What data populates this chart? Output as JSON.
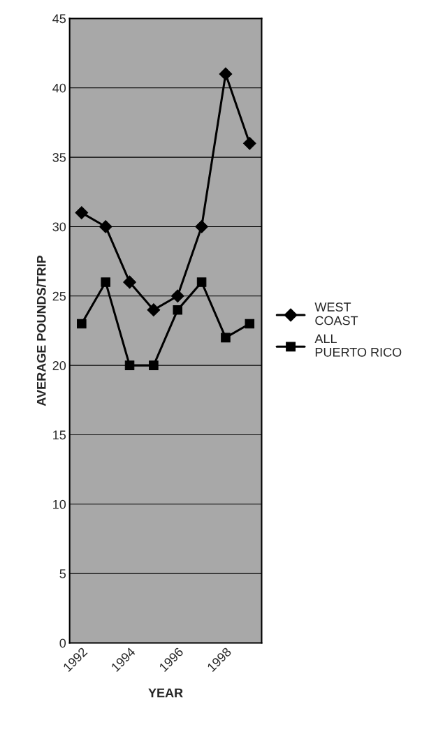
{
  "chart_data": {
    "type": "line",
    "xlabel": "YEAR",
    "ylabel": "AVERAGE POUNDS/TRIP",
    "categories": [
      "1992",
      null,
      "1994",
      null,
      "1996",
      null,
      "1998",
      null
    ],
    "series": [
      {
        "name": "WEST COAST",
        "color": "#000000",
        "marker": "diamond",
        "values": [
          31,
          30,
          26,
          24,
          25,
          30,
          41,
          36
        ]
      },
      {
        "name": "ALL PUERTO RICO",
        "color": "#000000",
        "marker": "square",
        "values": [
          23,
          26,
          20,
          20,
          24,
          26,
          22,
          23
        ]
      }
    ],
    "ylim": [
      0,
      45
    ],
    "yticks": [
      0,
      5,
      10,
      15,
      20,
      25,
      30,
      35,
      40,
      45
    ],
    "grid": "y",
    "legend": "right"
  }
}
